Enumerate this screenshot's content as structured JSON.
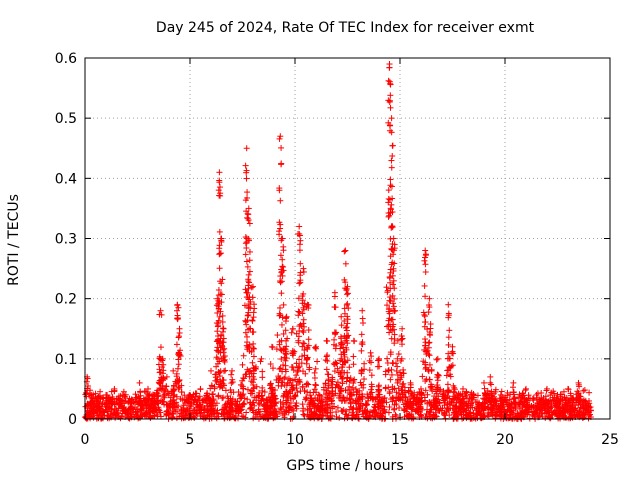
{
  "chart_data": {
    "type": "scatter",
    "title": "Day 245 of 2024, Rate Of TEC Index for receiver exmt",
    "xlabel": "GPS time / hours",
    "ylabel": "ROTI / TECUs",
    "xlim": [
      0,
      25
    ],
    "ylim": [
      0,
      0.6
    ],
    "xticks": [
      0,
      5,
      10,
      15,
      20,
      25
    ],
    "yticks": [
      0,
      0.1,
      0.2,
      0.3,
      0.4,
      0.5,
      0.6
    ],
    "xtick_labels": [
      "0",
      "5",
      "10",
      "15",
      "20",
      "25"
    ],
    "ytick_labels": [
      "0",
      "0.1",
      "0.2",
      "0.3",
      "0.4",
      "0.5",
      "0.6"
    ],
    "grid": true,
    "marker": "+",
    "color": "#ff0000",
    "series": [
      {
        "x": [
          0.1,
          0.3,
          0.6,
          1.0,
          1.4,
          1.8,
          2.2,
          2.6,
          3.0,
          3.3,
          3.6,
          3.7,
          3.9,
          4.2,
          4.4,
          4.5,
          5.0,
          5.5,
          6.0,
          6.3,
          6.4,
          6.5,
          6.6,
          7.0,
          7.5,
          7.7,
          7.8,
          8.0,
          8.4,
          8.9,
          9.3,
          9.4,
          9.6,
          9.9,
          10.2,
          10.4,
          10.6,
          11.0,
          11.5,
          11.9,
          12.2,
          12.4,
          12.5,
          12.8,
          13.2,
          13.6,
          14.0,
          14.5,
          14.6,
          14.7,
          14.9,
          15.1,
          15.5,
          16.0,
          16.2,
          16.4,
          16.8,
          17.3,
          17.5,
          18.0,
          18.5,
          19.0,
          19.3,
          19.8,
          20.4,
          21.0,
          21.5,
          22.0,
          22.5,
          23.0,
          23.5,
          24.0
        ],
        "y": [
          0.07,
          0.04,
          0.03,
          0.04,
          0.05,
          0.04,
          0.03,
          0.06,
          0.05,
          0.04,
          0.18,
          0.1,
          0.07,
          0.08,
          0.19,
          0.15,
          0.04,
          0.05,
          0.08,
          0.2,
          0.41,
          0.3,
          0.15,
          0.08,
          0.09,
          0.45,
          0.35,
          0.22,
          0.1,
          0.12,
          0.47,
          0.3,
          0.17,
          0.15,
          0.32,
          0.25,
          0.19,
          0.12,
          0.13,
          0.21,
          0.17,
          0.28,
          0.22,
          0.13,
          0.18,
          0.11,
          0.1,
          0.59,
          0.5,
          0.3,
          0.13,
          0.15,
          0.06,
          0.05,
          0.28,
          0.2,
          0.1,
          0.19,
          0.12,
          0.05,
          0.04,
          0.06,
          0.07,
          0.04,
          0.06,
          0.05,
          0.04,
          0.05,
          0.04,
          0.05,
          0.06,
          0.03
        ]
      }
    ]
  }
}
